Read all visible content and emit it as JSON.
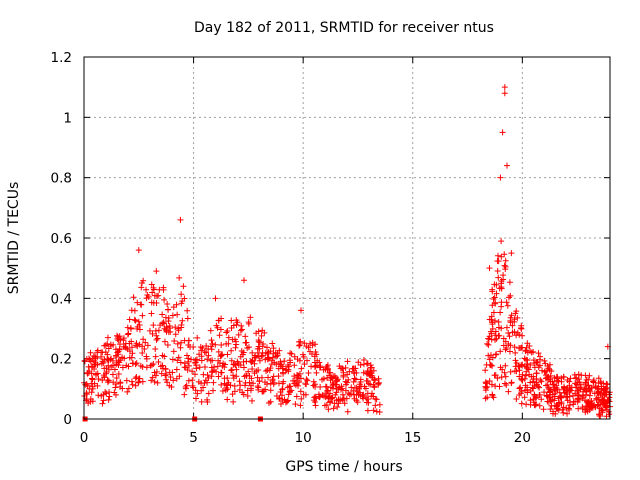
{
  "chart_data": {
    "type": "scatter",
    "title": "Day 182 of 2011, SRMTID for receiver ntus",
    "xlabel": "GPS time / hours",
    "ylabel": "SRMTID / TECUs",
    "xlim": [
      0,
      24
    ],
    "ylim": [
      0,
      1.2
    ],
    "x_ticks": [
      "0",
      "5",
      "10",
      "15",
      "20"
    ],
    "y_ticks": [
      "0",
      "0.2",
      "0.4",
      "0.6",
      "0.8",
      "1",
      "1.2"
    ],
    "x_tick_values": [
      0,
      5,
      10,
      15,
      20
    ],
    "y_tick_values": [
      0,
      0.2,
      0.4,
      0.6,
      0.8,
      1.0,
      1.2
    ],
    "grid": true,
    "marker": "plus",
    "color": "#ff0000",
    "series": [
      {
        "name": "SRMTID",
        "envelope_x": [
          0.0,
          0.5,
          1.0,
          1.5,
          2.0,
          2.5,
          3.0,
          3.5,
          4.0,
          4.3,
          4.5,
          5.0,
          5.5,
          6.0,
          6.5,
          7.0,
          7.5,
          8.0,
          8.5,
          9.0,
          9.5,
          10.0,
          10.5,
          11.0,
          11.5,
          12.0,
          12.5,
          13.0,
          13.5
        ],
        "envelope_y": [
          0.14,
          0.15,
          0.18,
          0.2,
          0.23,
          0.3,
          0.3,
          0.33,
          0.22,
          0.32,
          0.3,
          0.18,
          0.15,
          0.24,
          0.2,
          0.22,
          0.22,
          0.2,
          0.16,
          0.15,
          0.14,
          0.2,
          0.16,
          0.12,
          0.11,
          0.12,
          0.13,
          0.12,
          0.08
        ],
        "envelope2_x": [
          18.3,
          18.6,
          18.9,
          19.1,
          19.3,
          19.6,
          20.0,
          20.5,
          21.0,
          21.5,
          22.0,
          22.5,
          23.0,
          23.5,
          24.0
        ],
        "envelope2_y": [
          0.12,
          0.3,
          0.4,
          0.45,
          0.35,
          0.28,
          0.22,
          0.17,
          0.14,
          0.11,
          0.1,
          0.1,
          0.1,
          0.09,
          0.08
        ],
        "peaks": [
          [
            2.5,
            0.56
          ],
          [
            3.3,
            0.49
          ],
          [
            4.4,
            0.66
          ],
          [
            6.0,
            0.4
          ],
          [
            7.3,
            0.46
          ],
          [
            9.9,
            0.36
          ],
          [
            18.5,
            0.5
          ],
          [
            19.0,
            0.8
          ],
          [
            19.1,
            0.95
          ],
          [
            19.2,
            1.1
          ],
          [
            19.2,
            1.08
          ],
          [
            19.3,
            0.84
          ],
          [
            19.5,
            0.55
          ],
          [
            23.9,
            0.24
          ]
        ],
        "zero_markers_x": [
          0.05,
          5.05,
          8.05
        ]
      }
    ]
  }
}
